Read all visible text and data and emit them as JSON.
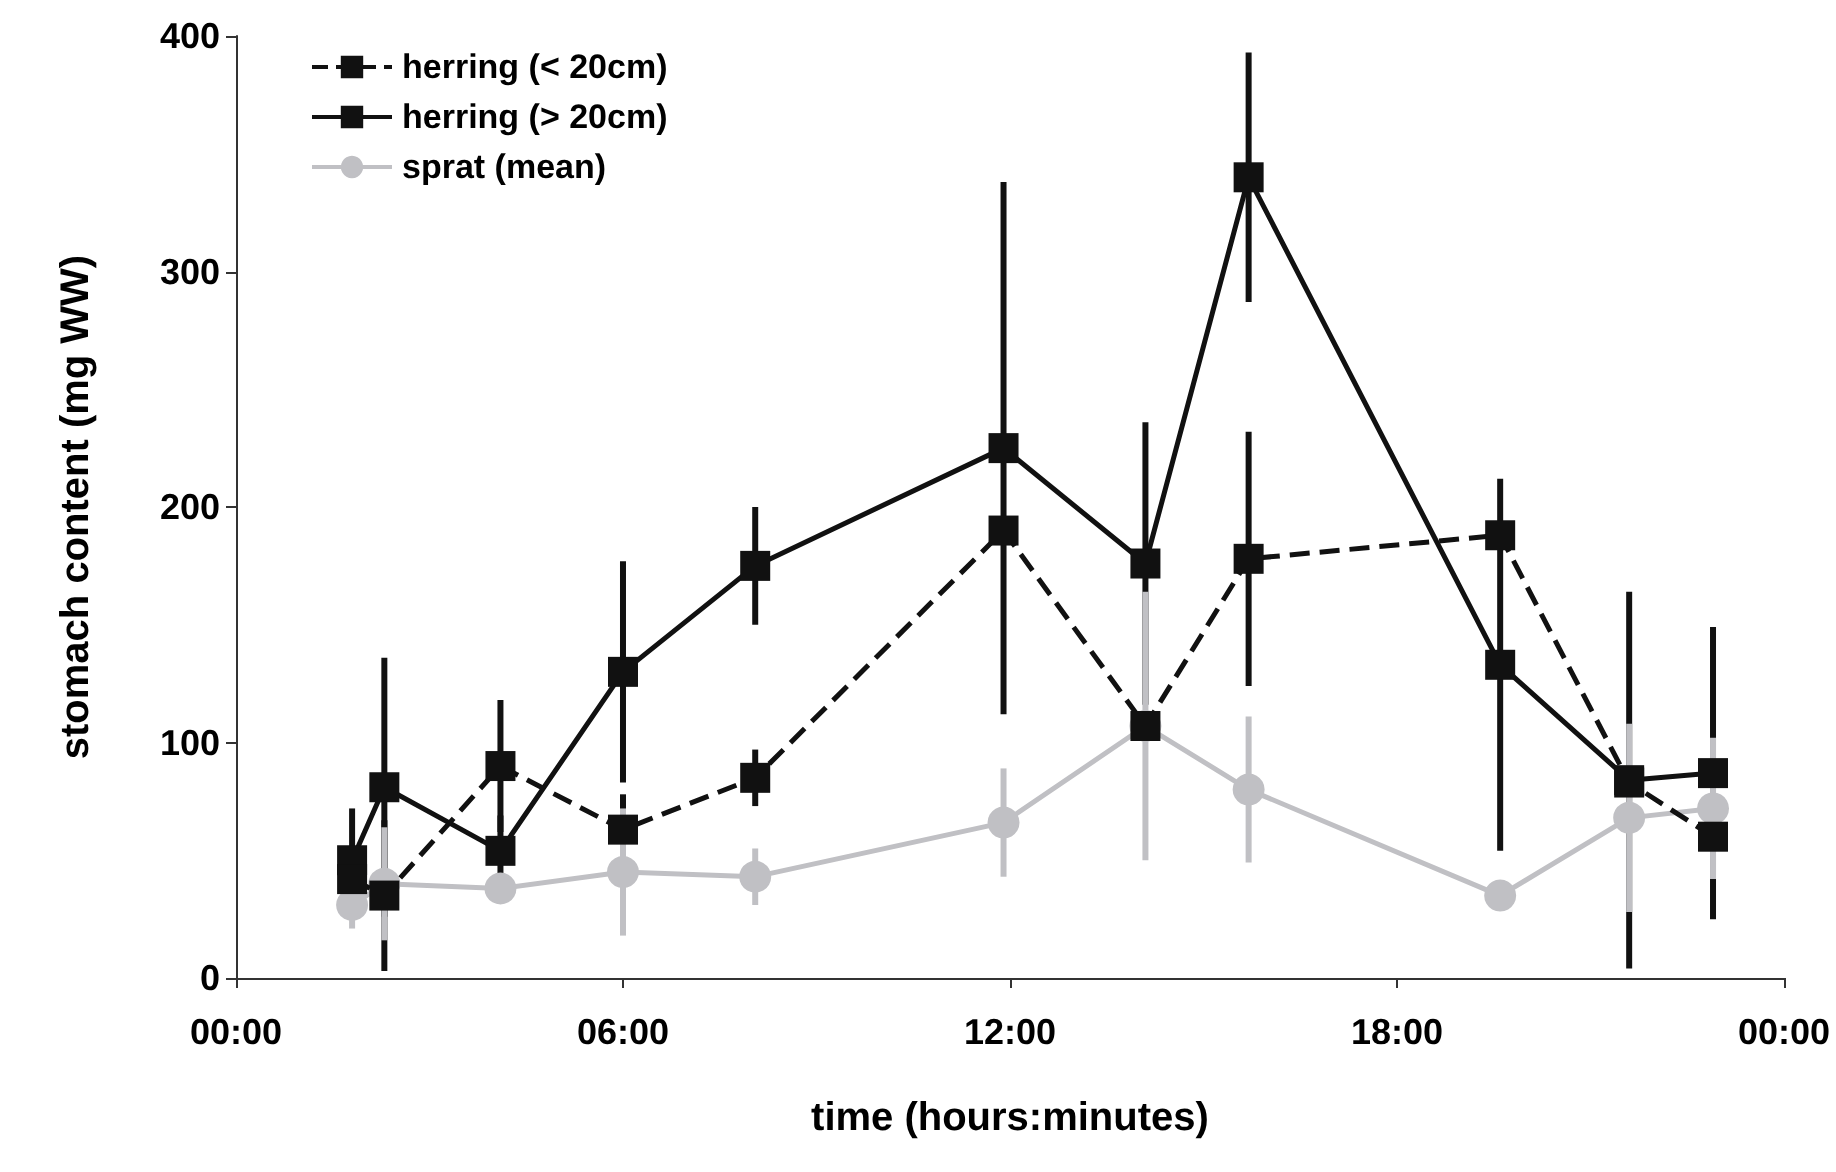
{
  "chart_data": {
    "type": "line",
    "xlabel": "time (hours:minutes)",
    "ylabel": "stomach content (mg WW)",
    "x": [
      1.8,
      2.3,
      4.1,
      6.0,
      8.05,
      11.9,
      14.1,
      15.7,
      19.6,
      21.6,
      22.9
    ],
    "xlim": [
      0,
      24
    ],
    "xticks": [
      {
        "value": 0,
        "label": "00:00"
      },
      {
        "value": 6,
        "label": "06:00"
      },
      {
        "value": 12,
        "label": "12:00"
      },
      {
        "value": 18,
        "label": "18:00"
      },
      {
        "value": 24,
        "label": "00:00"
      }
    ],
    "ylim": [
      0,
      400
    ],
    "yticks": [
      0,
      100,
      200,
      300,
      400
    ],
    "grid": false,
    "legend": "top left",
    "series": [
      {
        "name": "herring (< 20cm)",
        "color": "#111111",
        "marker": "square",
        "line_style": "dashed",
        "values": [
          42,
          35,
          90,
          63,
          85,
          190,
          107,
          178,
          188,
          83,
          60
        ],
        "errors": [
          null,
          32,
          28,
          15,
          12,
          null,
          null,
          54,
          null,
          null,
          null
        ]
      },
      {
        "name": "herring (> 20cm)",
        "color": "#111111",
        "marker": "square",
        "line_style": "solid",
        "values": [
          50,
          81,
          54,
          130,
          175,
          225,
          176,
          340,
          133,
          84,
          87
        ],
        "errors": [
          22,
          55,
          15,
          47,
          25,
          113,
          60,
          53,
          79,
          80,
          62
        ]
      },
      {
        "name": "sprat (mean)",
        "color": "#c0c0c4",
        "marker": "circle",
        "line_style": "solid",
        "values": [
          31,
          40,
          38,
          45,
          43,
          66,
          107,
          80,
          35,
          68,
          72
        ],
        "errors": [
          10,
          24,
          null,
          27,
          12,
          23,
          57,
          31,
          null,
          40,
          30
        ]
      }
    ]
  }
}
